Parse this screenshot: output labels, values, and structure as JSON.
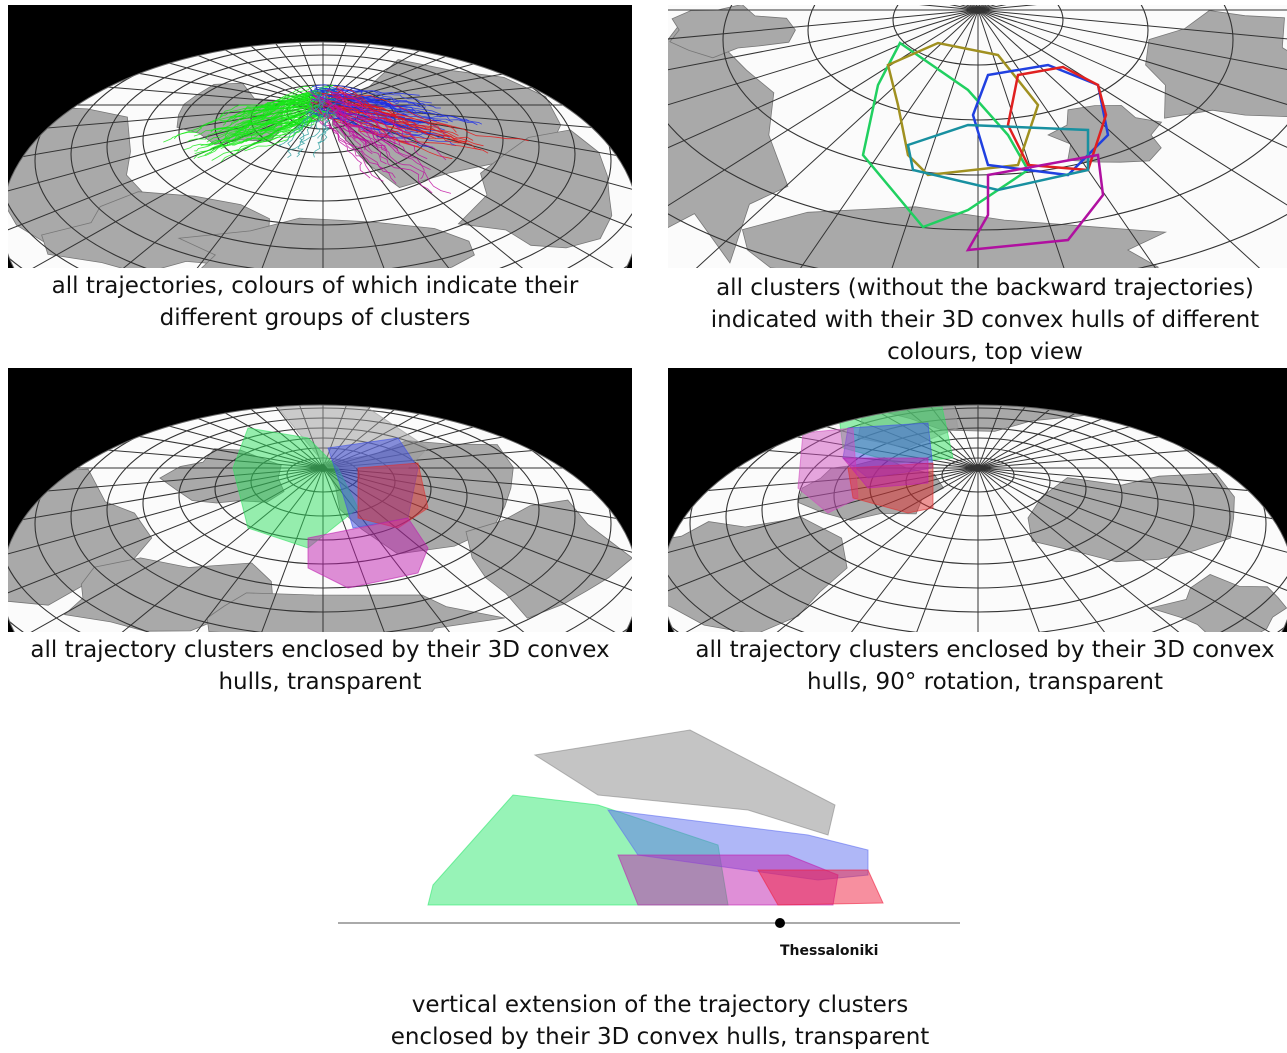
{
  "panels": [
    {
      "caption": [
        "all trajectories, colours of which indicate their",
        "different groups of clusters"
      ]
    },
    {
      "caption": [
        "all clusters (without the backward trajectories)",
        "indicated with their 3D convex hulls of different",
        "colours, top view"
      ]
    },
    {
      "caption": [
        "all trajectory clusters enclosed by their 3D convex",
        "hulls, transparent"
      ]
    },
    {
      "caption": [
        "all trajectory clusters enclosed by their 3D convex",
        "hulls, 90° rotation, transparent"
      ]
    },
    {
      "label": "Thessaloniki",
      "caption": [
        "vertical extension of the trajectory clusters",
        "enclosed by their 3D convex hulls, transparent"
      ]
    }
  ]
}
